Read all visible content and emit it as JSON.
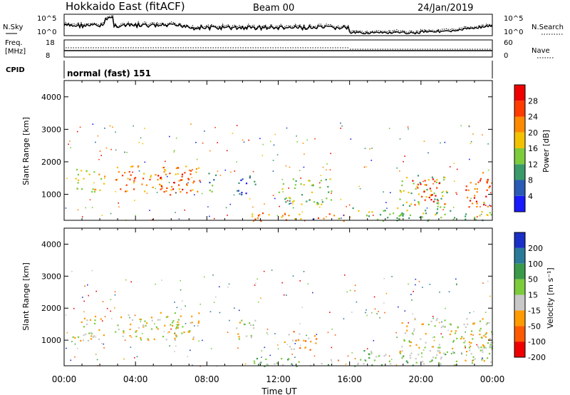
{
  "header": {
    "title": "Hokkaido East (fitACF)",
    "beam": "Beam 00",
    "date": "24/Jan/2019"
  },
  "noise_panel": {
    "left_label": "N.Sky",
    "right_label": "N.Search",
    "left_ticks": [
      "10^5",
      "10^0"
    ],
    "right_ticks": [
      "10^5",
      "10^0"
    ]
  },
  "freq_panel": {
    "left_label_1": "Freq.",
    "left_label_2": "[MHz]",
    "right_label": "Nave",
    "left_ticks": [
      "18",
      "8"
    ],
    "right_ticks": [
      "60",
      "0"
    ]
  },
  "cpid_panel": {
    "label": "CPID",
    "value": "normal (fast) 151"
  },
  "chart_data": [
    {
      "type": "heatmap",
      "name": "power",
      "ylabel": "Slant Range [km]",
      "ylim": [
        200,
        4500
      ],
      "yticks": [
        "1000",
        "2000",
        "3000",
        "4000"
      ],
      "colorbar_label": "Power [dB]",
      "colorbar_ticks": [
        "4",
        "8",
        "12",
        "16",
        "20",
        "24",
        "28"
      ],
      "colors": [
        "#1a1aff",
        "#2a5bb5",
        "#3a9a6a",
        "#7ccc3c",
        "#f2c200",
        "#ff8a00",
        "#ff3b00",
        "#ee0000"
      ],
      "regions": [
        {
          "t0": 0.4,
          "t1": 2.3,
          "r0": 1100,
          "r1": 1800,
          "level": 4
        },
        {
          "t0": 2.8,
          "t1": 7.6,
          "r0": 1100,
          "r1": 1900,
          "level": 5
        },
        {
          "t0": 5.2,
          "t1": 6.9,
          "r0": 1000,
          "r1": 1700,
          "level": 6
        },
        {
          "t0": 8.0,
          "t1": 8.5,
          "r0": 1000,
          "r1": 1800,
          "level": 2
        },
        {
          "t0": 9.6,
          "t1": 10.7,
          "r0": 1000,
          "r1": 1700,
          "level": 1
        },
        {
          "t0": 12.0,
          "t1": 15.0,
          "r0": 700,
          "r1": 1500,
          "level": 3
        },
        {
          "t0": 10.5,
          "t1": 16.0,
          "r0": 200,
          "r1": 450,
          "level": 5
        },
        {
          "t0": 16.0,
          "t1": 24.0,
          "r0": 200,
          "r1": 600,
          "level": 3
        },
        {
          "t0": 18.7,
          "t1": 21.5,
          "r0": 600,
          "r1": 1600,
          "level": 3
        },
        {
          "t0": 19.5,
          "t1": 21.0,
          "r0": 700,
          "r1": 1500,
          "level": 7
        },
        {
          "t0": 22.3,
          "t1": 24.0,
          "r0": 600,
          "r1": 1700,
          "level": 6
        }
      ]
    },
    {
      "type": "heatmap",
      "name": "velocity",
      "ylabel": "Slant Range [km]",
      "xlabel": "Time UT",
      "ylim": [
        200,
        4500
      ],
      "yticks": [
        "1000",
        "2000",
        "3000",
        "4000"
      ],
      "xticks": [
        "00:00",
        "04:00",
        "08:00",
        "12:00",
        "16:00",
        "20:00",
        "00:00"
      ],
      "colorbar_label": "Velocity [m s⁻¹]",
      "colorbar_ticks": [
        "200",
        "100",
        "50",
        "15",
        "-15",
        "-50",
        "-100",
        "-200"
      ],
      "colors": [
        "#1a2fc8",
        "#2a7a9a",
        "#3a9a4a",
        "#7ccc3c",
        "#c8c8c8",
        "#ff9a00",
        "#ff5a00",
        "#ee0000"
      ],
      "regions": [
        {
          "t0": 0.4,
          "t1": 2.3,
          "r0": 1000,
          "r1": 1800,
          "level": 4
        },
        {
          "t0": 2.8,
          "t1": 7.6,
          "r0": 1000,
          "r1": 1900,
          "level": 4
        },
        {
          "t0": 9.6,
          "t1": 10.7,
          "r0": 1000,
          "r1": 1700,
          "level": 4
        },
        {
          "t0": 12.3,
          "t1": 14.2,
          "r0": 700,
          "r1": 1300,
          "level": 5
        },
        {
          "t0": 10.5,
          "t1": 16.0,
          "r0": 200,
          "r1": 450,
          "level": 3
        },
        {
          "t0": 16.0,
          "t1": 22.0,
          "r0": 200,
          "r1": 700,
          "level": 3
        },
        {
          "t0": 18.7,
          "t1": 24.0,
          "r0": 600,
          "r1": 1700,
          "level": 4
        },
        {
          "t0": 22.3,
          "t1": 24.0,
          "r0": 300,
          "r1": 1200,
          "level": 4
        }
      ]
    }
  ]
}
